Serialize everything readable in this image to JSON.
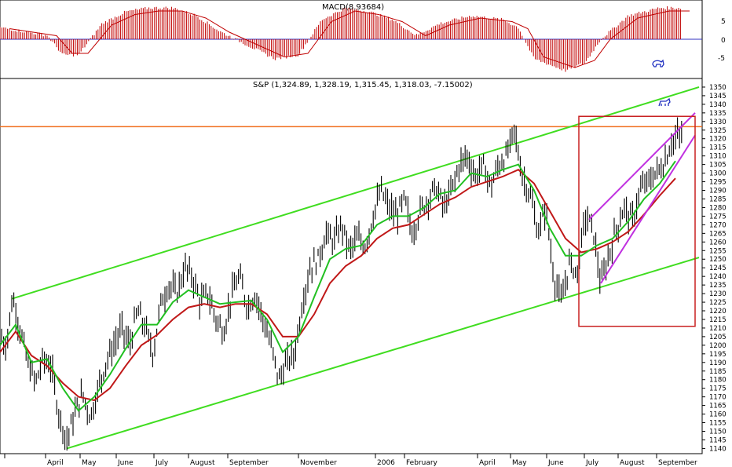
{
  "macd_panel": {
    "label": "MACD(8.93684)",
    "ylim": [
      -10,
      10
    ],
    "ticks": [
      "5",
      "0",
      "-5"
    ]
  },
  "price_panel": {
    "label": "S&P (1,324.89, 1,328.19, 1,315.45, 1,318.03, -7.15002)",
    "ylim": [
      1137,
      1355
    ],
    "ticks": [
      "1350",
      "1345",
      "1340",
      "1335",
      "1330",
      "1325",
      "1320",
      "1315",
      "1310",
      "1305",
      "1300",
      "1295",
      "1290",
      "1285",
      "1280",
      "1275",
      "1270",
      "1265",
      "1260",
      "1255",
      "1250",
      "1245",
      "1240",
      "1235",
      "1230",
      "1225",
      "1220",
      "1215",
      "1210",
      "1205",
      "1200",
      "1195",
      "1190",
      "1185",
      "1180",
      "1175",
      "1170",
      "1165",
      "1160",
      "1155",
      "1150",
      "1145",
      "1140"
    ]
  },
  "x_axis": {
    "months": [
      "April",
      "May",
      "June",
      "July",
      "August",
      "September",
      "November",
      "2006",
      "February",
      "April",
      "May",
      "June",
      "July",
      "August",
      "September"
    ]
  },
  "colors": {
    "price_bars": "#000000",
    "ma_short": "#22c022",
    "ma_long": "#c01818",
    "channel": "#40dd20",
    "resistance": "#f07020",
    "wedge": "#c030e0",
    "box": "#c82020",
    "macd": "#c00000"
  },
  "chart_data": {
    "type": "line",
    "title": "S&P (1,324.89, 1,328.19, 1,315.45, 1,318.03, -7.15002)",
    "price_series": [
      [
        0,
        1205
      ],
      [
        8,
        1200
      ],
      [
        16,
        1228
      ],
      [
        25,
        1210
      ],
      [
        35,
        1190
      ],
      [
        45,
        1178
      ],
      [
        55,
        1192
      ],
      [
        65,
        1188
      ],
      [
        75,
        1160
      ],
      [
        85,
        1145
      ],
      [
        95,
        1160
      ],
      [
        105,
        1172
      ],
      [
        115,
        1158
      ],
      [
        125,
        1175
      ],
      [
        135,
        1190
      ],
      [
        145,
        1200
      ],
      [
        155,
        1210
      ],
      [
        165,
        1200
      ],
      [
        175,
        1220
      ],
      [
        185,
        1210
      ],
      [
        195,
        1195
      ],
      [
        205,
        1225
      ],
      [
        215,
        1235
      ],
      [
        225,
        1230
      ],
      [
        235,
        1245
      ],
      [
        245,
        1240
      ],
      [
        255,
        1225
      ],
      [
        265,
        1230
      ],
      [
        275,
        1215
      ],
      [
        285,
        1208
      ],
      [
        295,
        1230
      ],
      [
        305,
        1240
      ],
      [
        315,
        1222
      ],
      [
        325,
        1230
      ],
      [
        335,
        1215
      ],
      [
        345,
        1200
      ],
      [
        355,
        1180
      ],
      [
        365,
        1190
      ],
      [
        375,
        1195
      ],
      [
        385,
        1225
      ],
      [
        395,
        1245
      ],
      [
        405,
        1250
      ],
      [
        415,
        1265
      ],
      [
        425,
        1260
      ],
      [
        435,
        1270
      ],
      [
        445,
        1255
      ],
      [
        455,
        1262
      ],
      [
        465,
        1258
      ],
      [
        475,
        1275
      ],
      [
        485,
        1290
      ],
      [
        495,
        1280
      ],
      [
        505,
        1275
      ],
      [
        515,
        1285
      ],
      [
        525,
        1265
      ],
      [
        535,
        1278
      ],
      [
        545,
        1285
      ],
      [
        555,
        1292
      ],
      [
        565,
        1280
      ],
      [
        575,
        1290
      ],
      [
        585,
        1305
      ],
      [
        595,
        1310
      ],
      [
        605,
        1298
      ],
      [
        615,
        1305
      ],
      [
        625,
        1292
      ],
      [
        635,
        1305
      ],
      [
        645,
        1310
      ],
      [
        655,
        1325
      ],
      [
        665,
        1298
      ],
      [
        675,
        1288
      ],
      [
        685,
        1265
      ],
      [
        695,
        1280
      ],
      [
        705,
        1240
      ],
      [
        715,
        1225
      ],
      [
        725,
        1248
      ],
      [
        735,
        1242
      ],
      [
        745,
        1275
      ],
      [
        755,
        1268
      ],
      [
        765,
        1235
      ],
      [
        775,
        1252
      ],
      [
        785,
        1268
      ],
      [
        795,
        1280
      ],
      [
        805,
        1272
      ],
      [
        815,
        1290
      ],
      [
        825,
        1295
      ],
      [
        835,
        1300
      ],
      [
        845,
        1305
      ],
      [
        855,
        1318
      ],
      [
        865,
        1322
      ]
    ],
    "ma_short_series": [
      [
        0,
        1200
      ],
      [
        20,
        1212
      ],
      [
        40,
        1190
      ],
      [
        60,
        1192
      ],
      [
        80,
        1175
      ],
      [
        100,
        1162
      ],
      [
        120,
        1170
      ],
      [
        140,
        1183
      ],
      [
        160,
        1198
      ],
      [
        180,
        1212
      ],
      [
        200,
        1212
      ],
      [
        220,
        1225
      ],
      [
        240,
        1232
      ],
      [
        260,
        1228
      ],
      [
        280,
        1224
      ],
      [
        300,
        1225
      ],
      [
        320,
        1226
      ],
      [
        340,
        1215
      ],
      [
        360,
        1196
      ],
      [
        380,
        1205
      ],
      [
        400,
        1228
      ],
      [
        420,
        1250
      ],
      [
        440,
        1256
      ],
      [
        460,
        1258
      ],
      [
        480,
        1270
      ],
      [
        500,
        1275
      ],
      [
        520,
        1275
      ],
      [
        540,
        1280
      ],
      [
        560,
        1288
      ],
      [
        580,
        1290
      ],
      [
        600,
        1300
      ],
      [
        620,
        1298
      ],
      [
        640,
        1302
      ],
      [
        660,
        1305
      ],
      [
        680,
        1290
      ],
      [
        700,
        1268
      ],
      [
        720,
        1252
      ],
      [
        740,
        1252
      ],
      [
        760,
        1258
      ],
      [
        780,
        1262
      ],
      [
        800,
        1272
      ],
      [
        820,
        1285
      ],
      [
        840,
        1294
      ],
      [
        860,
        1307
      ]
    ],
    "ma_long_series": [
      [
        0,
        1196
      ],
      [
        20,
        1208
      ],
      [
        40,
        1194
      ],
      [
        60,
        1188
      ],
      [
        80,
        1178
      ],
      [
        100,
        1170
      ],
      [
        120,
        1168
      ],
      [
        140,
        1175
      ],
      [
        160,
        1188
      ],
      [
        180,
        1200
      ],
      [
        200,
        1206
      ],
      [
        220,
        1215
      ],
      [
        240,
        1222
      ],
      [
        260,
        1224
      ],
      [
        280,
        1222
      ],
      [
        300,
        1224
      ],
      [
        320,
        1224
      ],
      [
        340,
        1218
      ],
      [
        360,
        1205
      ],
      [
        380,
        1205
      ],
      [
        400,
        1218
      ],
      [
        420,
        1236
      ],
      [
        440,
        1246
      ],
      [
        460,
        1252
      ],
      [
        480,
        1262
      ],
      [
        500,
        1268
      ],
      [
        520,
        1270
      ],
      [
        540,
        1276
      ],
      [
        560,
        1282
      ],
      [
        580,
        1286
      ],
      [
        600,
        1292
      ],
      [
        620,
        1295
      ],
      [
        640,
        1298
      ],
      [
        660,
        1302
      ],
      [
        680,
        1294
      ],
      [
        700,
        1278
      ],
      [
        720,
        1262
      ],
      [
        740,
        1254
      ],
      [
        760,
        1256
      ],
      [
        780,
        1260
      ],
      [
        800,
        1266
      ],
      [
        820,
        1276
      ],
      [
        840,
        1287
      ],
      [
        860,
        1297
      ]
    ],
    "channel_lines": [
      {
        "from": [
          15,
          1227
        ],
        "to": [
          890,
          1350
        ]
      },
      {
        "from": [
          85,
          1140
        ],
        "to": [
          890,
          1251
        ]
      }
    ],
    "resistance_line": {
      "y": 1327
    },
    "wedge_lines": [
      {
        "from": [
          750,
          1273
        ],
        "to": [
          885,
          1335
        ]
      },
      {
        "from": [
          765,
          1236
        ],
        "to": [
          885,
          1322
        ]
      }
    ],
    "highlight_box": {
      "x0": 737,
      "x1": 885,
      "y0": 1211,
      "y1": 1333
    },
    "macd_histogram_shape": [
      [
        0,
        3
      ],
      [
        60,
        1
      ],
      [
        80,
        -4
      ],
      [
        100,
        -4
      ],
      [
        130,
        4
      ],
      [
        160,
        7
      ],
      [
        190,
        8
      ],
      [
        220,
        8
      ],
      [
        250,
        6
      ],
      [
        280,
        2
      ],
      [
        310,
        -1
      ],
      [
        350,
        -5
      ],
      [
        380,
        -4
      ],
      [
        410,
        5
      ],
      [
        440,
        8
      ],
      [
        470,
        7
      ],
      [
        500,
        5
      ],
      [
        530,
        1
      ],
      [
        560,
        4
      ],
      [
        600,
        6
      ],
      [
        640,
        5
      ],
      [
        660,
        3
      ],
      [
        680,
        -5
      ],
      [
        720,
        -8
      ],
      [
        745,
        -6
      ],
      [
        765,
        0
      ],
      [
        800,
        6
      ],
      [
        840,
        8
      ],
      [
        866,
        8
      ]
    ]
  }
}
